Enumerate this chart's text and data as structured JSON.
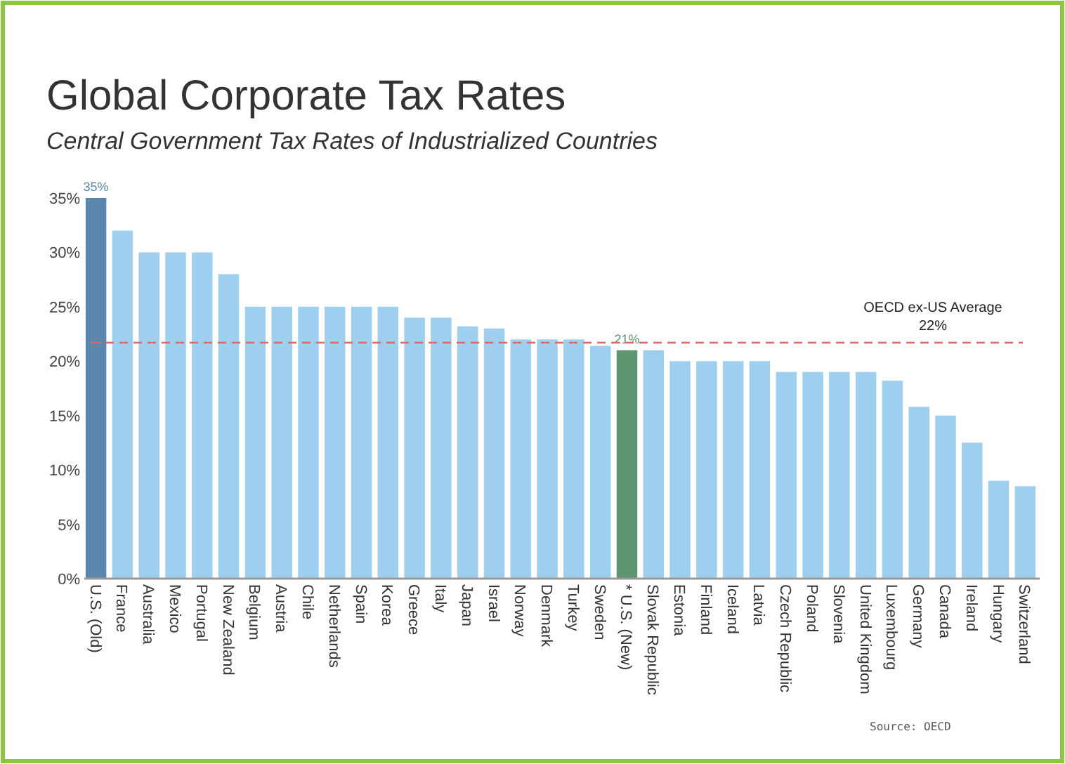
{
  "chart_data": {
    "type": "bar",
    "title": "Global Corporate Tax Rates",
    "subtitle": "Central Government Tax Rates of Industrialized Countries",
    "categories": [
      "U.S. (Old)",
      "France",
      "Australia",
      "Mexico",
      "Portugal",
      "New Zealand",
      "Belgium",
      "Austria",
      "Chile",
      "Netherlands",
      "Spain",
      "Korea",
      "Greece",
      "Italy",
      "Japan",
      "Israel",
      "Norway",
      "Denmark",
      "Turkey",
      "Sweden",
      "* U.S. (New)",
      "Slovak Republic",
      "Estonia",
      "Finland",
      "Iceland",
      "Latvia",
      "Czech Republic",
      "Poland",
      "Slovenia",
      "United Kingdom",
      "Luxembourg",
      "Germany",
      "Canada",
      "Ireland",
      "Hungary",
      "Switzerland"
    ],
    "values": [
      35,
      32,
      30,
      30,
      30,
      28,
      25,
      25,
      25,
      25,
      25,
      25,
      24,
      24,
      23.2,
      23,
      22,
      22,
      22,
      21.4,
      21,
      21,
      20,
      20,
      20,
      20,
      19,
      19,
      19,
      19,
      18.2,
      15.8,
      15,
      12.5,
      9,
      8.5
    ],
    "colors": [
      "#5b87ad",
      "#9ecfee",
      "#9ecfee",
      "#9ecfee",
      "#9ecfee",
      "#9ecfee",
      "#9ecfee",
      "#9ecfee",
      "#9ecfee",
      "#9ecfee",
      "#9ecfee",
      "#9ecfee",
      "#9ecfee",
      "#9ecfee",
      "#9ecfee",
      "#9ecfee",
      "#9ecfee",
      "#9ecfee",
      "#9ecfee",
      "#9ecfee",
      "#5e9672",
      "#9ecfee",
      "#9ecfee",
      "#9ecfee",
      "#9ecfee",
      "#9ecfee",
      "#9ecfee",
      "#9ecfee",
      "#9ecfee",
      "#9ecfee",
      "#9ecfee",
      "#9ecfee",
      "#9ecfee",
      "#9ecfee",
      "#9ecfee",
      "#9ecfee"
    ],
    "value_labels": [
      "35%",
      null,
      null,
      null,
      null,
      null,
      null,
      null,
      null,
      null,
      null,
      null,
      null,
      null,
      null,
      null,
      null,
      null,
      null,
      null,
      "21%",
      null,
      null,
      null,
      null,
      null,
      null,
      null,
      null,
      null,
      null,
      null,
      null,
      null,
      null,
      null
    ],
    "ylim": [
      0,
      35
    ],
    "yticks": [
      {
        "value": 0,
        "label": "0%"
      },
      {
        "value": 5,
        "label": "5%"
      },
      {
        "value": 10,
        "label": "10%"
      },
      {
        "value": 15,
        "label": "15%"
      },
      {
        "value": 20,
        "label": "20%"
      },
      {
        "value": 25,
        "label": "25%"
      },
      {
        "value": 30,
        "label": "30%"
      },
      {
        "value": 35,
        "label": "35%"
      }
    ],
    "ref_lines": [
      {
        "axis": "y",
        "value": 21.7,
        "label": "OECD ex-US Average\n22%",
        "color": "#e06666",
        "line_style": "dashed"
      }
    ],
    "grid": false,
    "annotations": [
      "Source: OECD"
    ]
  }
}
